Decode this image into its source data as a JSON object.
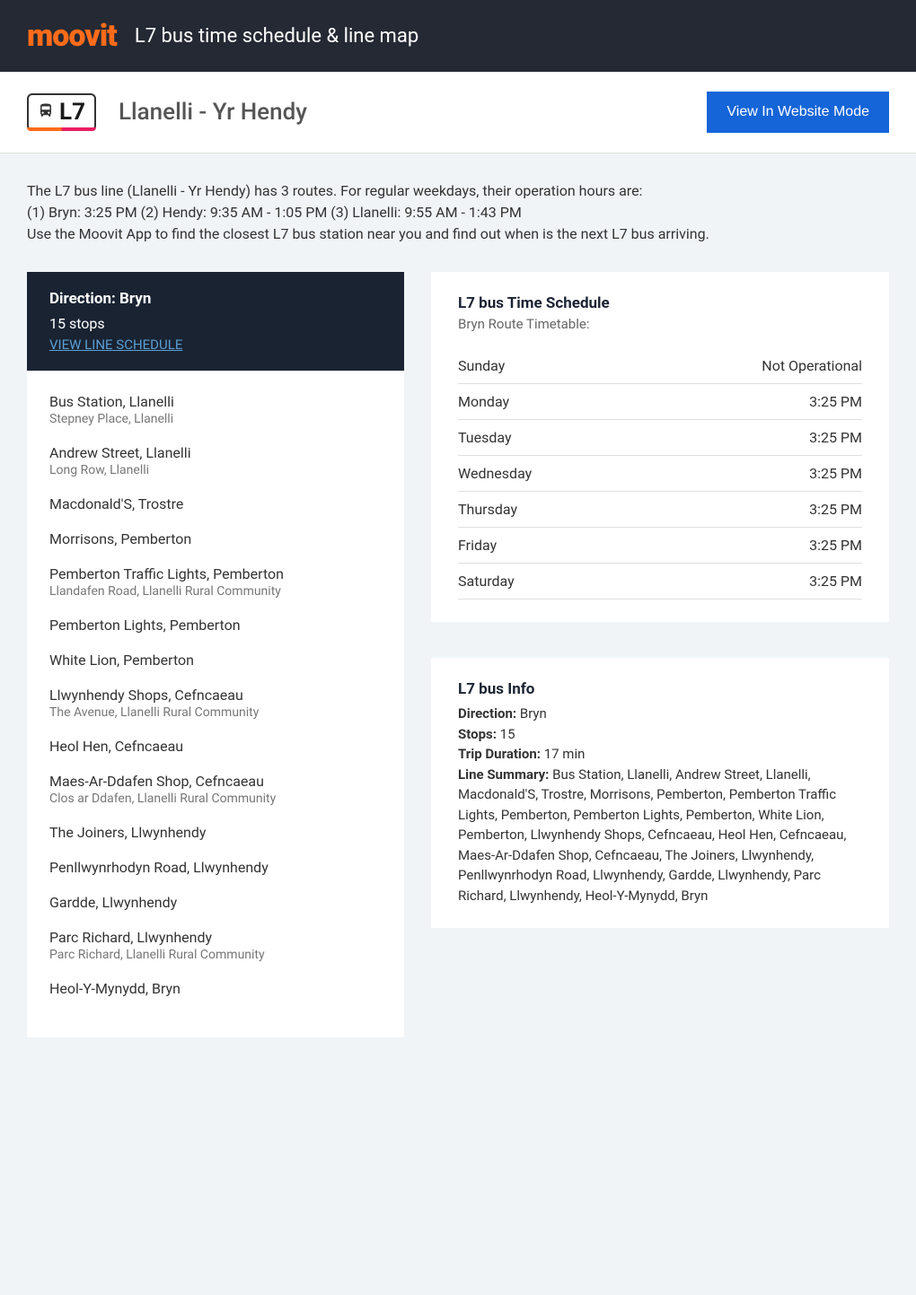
{
  "header": {
    "logo": "moovit",
    "title": "L7 bus time schedule & line map"
  },
  "subheader": {
    "route_id": "L7",
    "route_name": "Llanelli - Yr Hendy",
    "button_label": "View In Website Mode"
  },
  "intro": {
    "line1": "The L7 bus line (Llanelli - Yr Hendy) has 3 routes. For regular weekdays, their operation hours are:",
    "line2": "(1) Bryn: 3:25 PM (2) Hendy: 9:35 AM - 1:05 PM (3) Llanelli: 9:55 AM - 1:43 PM",
    "line3": "Use the Moovit App to find the closest L7 bus station near you and find out when is the next L7 bus arriving."
  },
  "direction": {
    "title": "Direction: Bryn",
    "stops_count": "15 stops",
    "link_label": "VIEW LINE SCHEDULE"
  },
  "stops": [
    {
      "name": "Bus Station, Llanelli",
      "sub": "Stepney Place, Llanelli"
    },
    {
      "name": "Andrew Street, Llanelli",
      "sub": "Long Row, Llanelli"
    },
    {
      "name": "Macdonald'S, Trostre",
      "sub": ""
    },
    {
      "name": "Morrisons, Pemberton",
      "sub": ""
    },
    {
      "name": "Pemberton Traffic Lights, Pemberton",
      "sub": "Llandafen Road, Llanelli Rural Community"
    },
    {
      "name": "Pemberton Lights, Pemberton",
      "sub": ""
    },
    {
      "name": "White Lion, Pemberton",
      "sub": ""
    },
    {
      "name": "Llwynhendy Shops, Cefncaeau",
      "sub": "The Avenue, Llanelli Rural Community"
    },
    {
      "name": "Heol Hen, Cefncaeau",
      "sub": ""
    },
    {
      "name": "Maes-Ar-Ddafen Shop, Cefncaeau",
      "sub": "Clos ar Ddafen, Llanelli Rural Community"
    },
    {
      "name": "The Joiners, Llwynhendy",
      "sub": ""
    },
    {
      "name": "Penllwynrhodyn Road, Llwynhendy",
      "sub": ""
    },
    {
      "name": "Gardde, Llwynhendy",
      "sub": ""
    },
    {
      "name": "Parc Richard, Llwynhendy",
      "sub": "Parc Richard, Llanelli Rural Community"
    },
    {
      "name": "Heol-Y-Mynydd, Bryn",
      "sub": ""
    }
  ],
  "schedule": {
    "title": "L7 bus Time Schedule",
    "subtitle": "Bryn Route Timetable:",
    "rows": [
      {
        "day": "Sunday",
        "time": "Not Operational"
      },
      {
        "day": "Monday",
        "time": "3:25 PM"
      },
      {
        "day": "Tuesday",
        "time": "3:25 PM"
      },
      {
        "day": "Wednesday",
        "time": "3:25 PM"
      },
      {
        "day": "Thursday",
        "time": "3:25 PM"
      },
      {
        "day": "Friday",
        "time": "3:25 PM"
      },
      {
        "day": "Saturday",
        "time": "3:25 PM"
      }
    ]
  },
  "info": {
    "title": "L7 bus Info",
    "direction_label": "Direction:",
    "direction_value": " Bryn",
    "stops_label": "Stops:",
    "stops_value": " 15",
    "duration_label": "Trip Duration:",
    "duration_value": " 17 min",
    "summary_label": "Line Summary:",
    "summary_value": " Bus Station, Llanelli, Andrew Street, Llanelli, Macdonald'S, Trostre, Morrisons, Pemberton, Pemberton Traffic Lights, Pemberton, Pemberton Lights, Pemberton, White Lion, Pemberton, Llwynhendy Shops, Cefncaeau, Heol Hen, Cefncaeau, Maes-Ar-Ddafen Shop, Cefncaeau, The Joiners, Llwynhendy, Penllwynrhodyn Road, Llwynhendy, Gardde, Llwynhendy, Parc Richard, Llwynhendy, Heol-Y-Mynydd, Bryn"
  },
  "colors": {
    "brand_orange": "#ff6b1a",
    "dark_bg": "#242933",
    "direction_bg": "#1a2332",
    "link_blue": "#5a9fd4",
    "button_blue": "#1565d8",
    "page_bg": "#f0f4f7"
  }
}
